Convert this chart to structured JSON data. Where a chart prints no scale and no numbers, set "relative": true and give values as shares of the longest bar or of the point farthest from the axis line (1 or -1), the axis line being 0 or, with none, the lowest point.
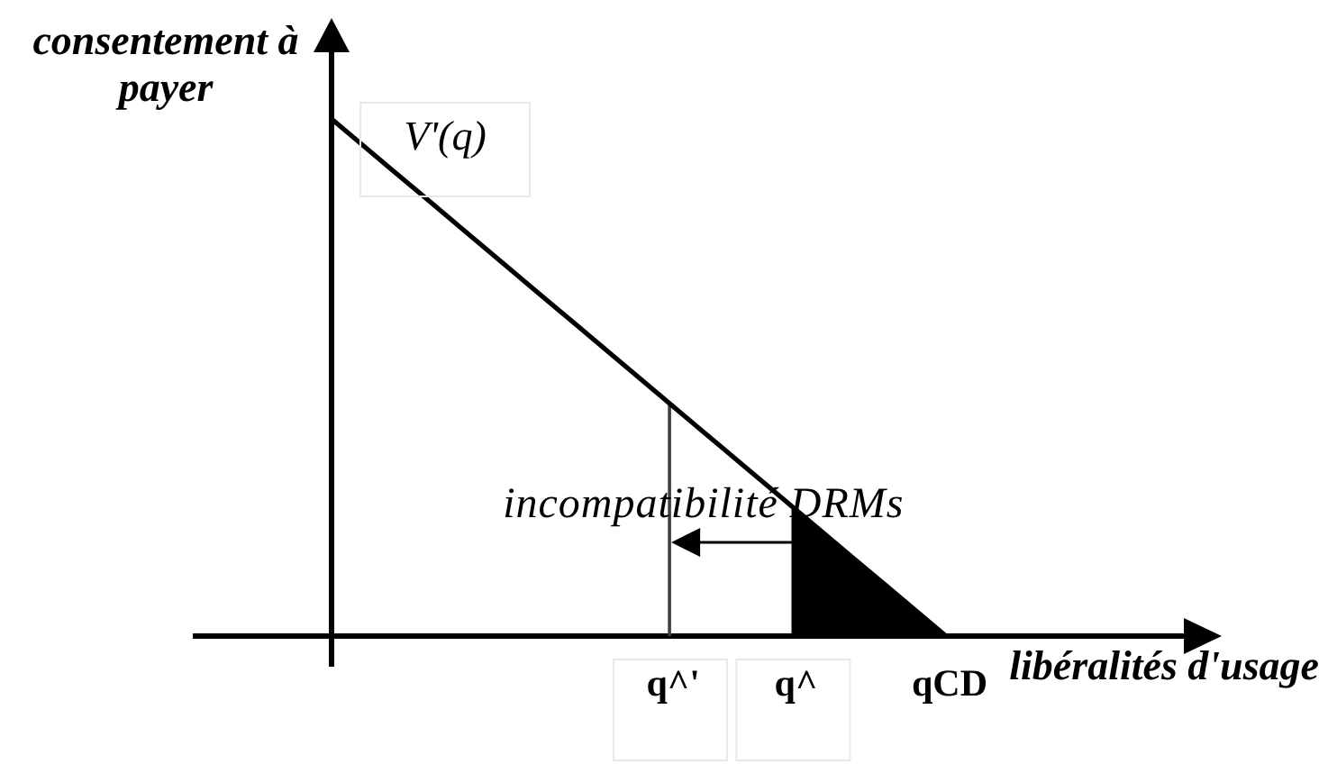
{
  "chart_data": {
    "type": "line",
    "xlabel": "libéralités d'usage",
    "ylabel": "consentement à payer",
    "relative": true,
    "tick_labels": "x",
    "categories": [
      null,
      null,
      null,
      null,
      null,
      null,
      null,
      null,
      null,
      null,
      null,
      "q^'",
      null,
      null,
      null,
      "q^",
      null,
      null,
      null,
      null,
      "qCD"
    ],
    "series": [
      {
        "name": "V'(q)",
        "color": "#000000",
        "values": [
          1,
          0.95,
          0.9,
          0.85,
          0.8,
          0.75,
          0.7,
          0.65,
          0.6,
          0.55,
          0.5,
          0.45,
          0.4,
          0.35,
          0.3,
          0.25,
          0.2,
          0.15,
          0.1,
          0.05,
          0
        ]
      },
      {
        "type": "area",
        "color": "#000000",
        "values": [
          null,
          null,
          null,
          null,
          null,
          null,
          null,
          null,
          null,
          null,
          null,
          null,
          null,
          null,
          null,
          0.25,
          0.2,
          0.15,
          0.1,
          0.05,
          0
        ]
      }
    ],
    "ref_lines": [
      {
        "axis": "x",
        "value": "q^'",
        "color": "#404040"
      }
    ],
    "annotations": [
      "incompatibilité DRMs"
    ]
  }
}
